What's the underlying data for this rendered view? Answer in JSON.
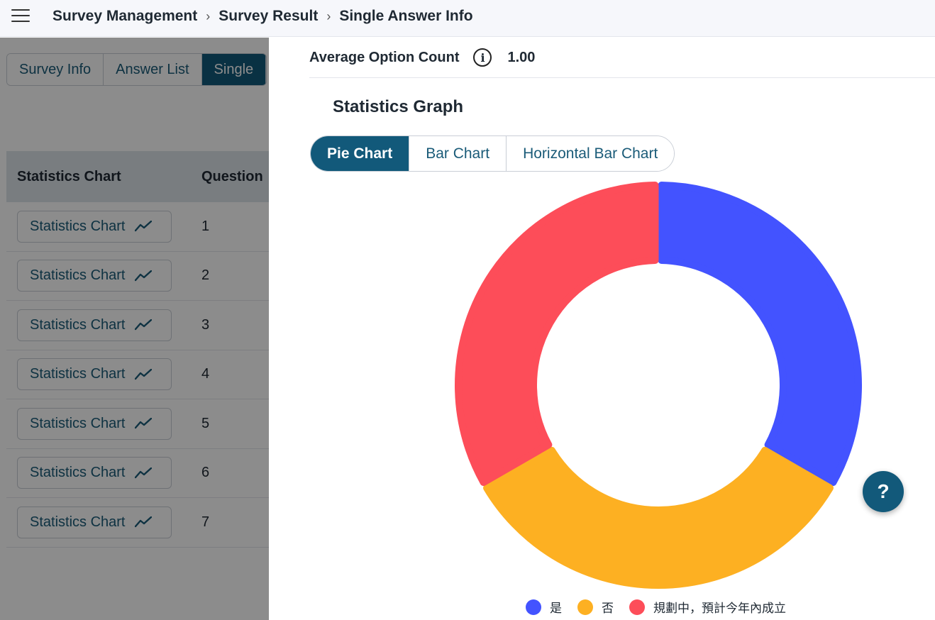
{
  "breadcrumb": [
    "Survey Management",
    "Survey Result",
    "Single Answer Info"
  ],
  "breadcrumb_separator": "›",
  "background_page": {
    "tabs": [
      "Survey Info",
      "Answer List",
      "Single"
    ],
    "active_tab": 2,
    "table": {
      "headers": [
        "Statistics Chart",
        "Question"
      ],
      "rows": [
        {
          "button": "Statistics Chart",
          "num": "1"
        },
        {
          "button": "Statistics Chart",
          "num": "2"
        },
        {
          "button": "Statistics Chart",
          "num": "3"
        },
        {
          "button": "Statistics Chart",
          "num": "4"
        },
        {
          "button": "Statistics Chart",
          "num": "5"
        },
        {
          "button": "Statistics Chart",
          "num": "6"
        },
        {
          "button": "Statistics Chart",
          "num": "7"
        }
      ]
    }
  },
  "drawer": {
    "avg_label": "Average Option Count",
    "avg_value": "1.00",
    "graph_title": "Statistics Graph",
    "chart_tabs": [
      "Pie Chart",
      "Bar Chart",
      "Horizontal Bar Chart"
    ],
    "active_chart_tab": 0
  },
  "help_label": "?",
  "chart_data": {
    "type": "pie",
    "donut": true,
    "categories": [
      "是",
      "否",
      "規劃中，預計今年內成立"
    ],
    "values": [
      33.3,
      33.3,
      33.3
    ],
    "colors": [
      "#4353ff",
      "#fdb022",
      "#fd4d59"
    ],
    "legend_position": "bottom"
  }
}
